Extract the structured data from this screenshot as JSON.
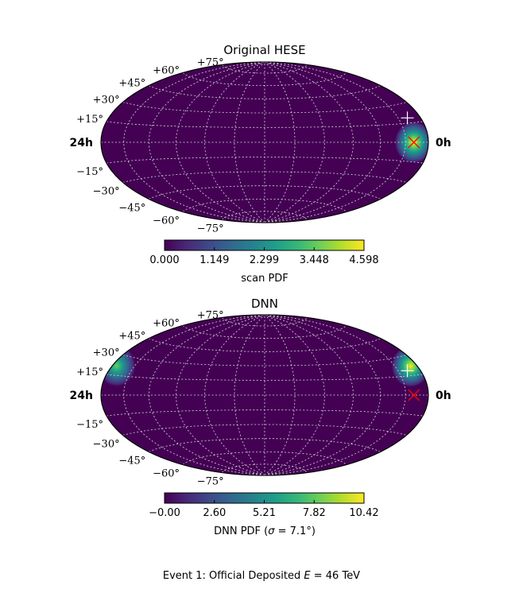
{
  "caption": {
    "text_a": "Event 1: Official Deposited ",
    "text_var": "E",
    "text_b": " = 46 TeV"
  },
  "colors": {
    "viridis": [
      "#440154",
      "#482878",
      "#3e4989",
      "#31688e",
      "#26828e",
      "#1f9e89",
      "#35b779",
      "#6ece58",
      "#b5de2b",
      "#fde725"
    ],
    "true_marker": "#ff0000",
    "best_fit_marker": "#ffffff"
  },
  "chart_data": [
    {
      "type": "heatmap",
      "projection": "hammer",
      "title": "Original HESE",
      "ra_labels": {
        "left": "24h",
        "right": "0h"
      },
      "dec_labels": [
        "+75°",
        "+60°",
        "+45°",
        "+30°",
        "+15°",
        "−15°",
        "−30°",
        "−45°",
        "−60°",
        "−75°"
      ],
      "colorbar": {
        "label": "scan PDF",
        "range": [
          0.0,
          4.598
        ],
        "ticks": [
          "0.000",
          "1.149",
          "2.299",
          "3.448",
          "4.598"
        ]
      },
      "hotspots": [
        {
          "ra_hours": 1.3,
          "dec_deg": 0,
          "sigma_deg": 9,
          "peak": 4.598
        }
      ],
      "markers": {
        "true_direction": {
          "symbol": "x",
          "ra_hours": 1.3,
          "dec_deg": 0
        },
        "best_fit": {
          "symbol": "+",
          "ra_hours": 1.2,
          "dec_deg": 19
        }
      }
    },
    {
      "type": "heatmap",
      "projection": "hammer",
      "title": "DNN",
      "ra_labels": {
        "left": "24h",
        "right": "0h"
      },
      "dec_labels": [
        "+75°",
        "+60°",
        "+45°",
        "+30°",
        "+15°",
        "−15°",
        "−30°",
        "−45°",
        "−60°",
        "−75°"
      ],
      "colorbar": {
        "label_a": "DNN PDF (",
        "label_var": "σ",
        "label_b": " = 7.1°)",
        "range": [
          0.0,
          10.42
        ],
        "ticks": [
          "−0.00",
          "2.60",
          "5.21",
          "7.82",
          "10.42"
        ]
      },
      "hotspots": [
        {
          "ra_hours": 0.6,
          "dec_deg": 22,
          "sigma_deg": 9,
          "peak": 10.42
        },
        {
          "ra_hours": 23.6,
          "dec_deg": 22,
          "sigma_deg": 9,
          "peak": 7.8
        }
      ],
      "markers": {
        "true_direction": {
          "symbol": "x",
          "ra_hours": 1.3,
          "dec_deg": 0
        },
        "best_fit": {
          "symbol": "+",
          "ra_hours": 1.2,
          "dec_deg": 19
        }
      }
    }
  ]
}
